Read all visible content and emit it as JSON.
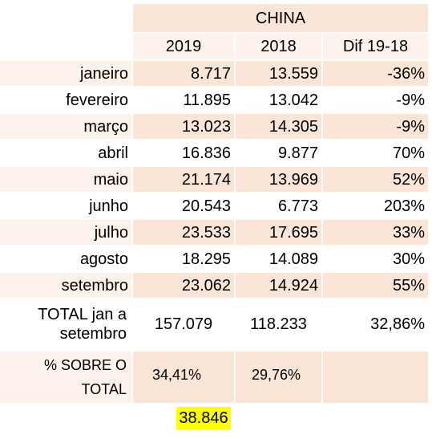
{
  "header": {
    "country": "CHINA",
    "col_2019": "2019",
    "col_2018": "2018",
    "col_dif": "Dif 19-18"
  },
  "rows": [
    {
      "month": "janeiro",
      "v2019": "8.717",
      "v2018": "13.559",
      "dif": "-36%"
    },
    {
      "month": "fevereiro",
      "v2019": "11.895",
      "v2018": "13.042",
      "dif": "-9%"
    },
    {
      "month": "março",
      "v2019": "13.023",
      "v2018": "14.305",
      "dif": "-9%"
    },
    {
      "month": "abril",
      "v2019": "16.836",
      "v2018": "9.877",
      "dif": "70%"
    },
    {
      "month": "maio",
      "v2019": "21.174",
      "v2018": "13.969",
      "dif": "52%"
    },
    {
      "month": "junho",
      "v2019": "20.543",
      "v2018": "6.773",
      "dif": "203%"
    },
    {
      "month": "julho",
      "v2019": "23.533",
      "v2018": "17.695",
      "dif": "33%"
    },
    {
      "month": "agosto",
      "v2019": "18.295",
      "v2018": "14.089",
      "dif": "30%"
    },
    {
      "month": "setembro",
      "v2019": "23.062",
      "v2018": "14.924",
      "dif": "55%"
    }
  ],
  "total": {
    "label_line1": "TOTAL jan a",
    "label_line2": "setembro",
    "v2019": "157.079",
    "v2018": "118.233",
    "dif": "32,86%"
  },
  "percent": {
    "label_line1": "% SOBRE O",
    "label_line2": "TOTAL",
    "v2019": "34,41%",
    "v2018": "29,76%"
  },
  "footer_value": "38.846",
  "colors": {
    "pink": "#fbe5d6",
    "light": "#fdf2ec",
    "highlight": "#ffff00"
  }
}
